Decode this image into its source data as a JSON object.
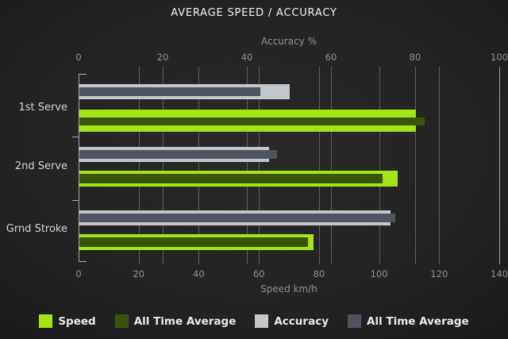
{
  "title": "AVERAGE SPEED / ACCURACY",
  "chart_data": {
    "type": "bar",
    "orientation": "horizontal",
    "title": "AVERAGE SPEED / ACCURACY",
    "categories": [
      "1st Serve",
      "2nd Serve",
      "Grnd Stroke"
    ],
    "series": [
      {
        "name": "Speed",
        "axis": "speed",
        "color": "#a4e314",
        "values": [
          112,
          106,
          78
        ]
      },
      {
        "name": "All Time Average",
        "axis": "speed",
        "color": "#3a530b",
        "values": [
          115,
          101,
          76
        ]
      },
      {
        "name": "Accuracy",
        "axis": "accuracy",
        "color": "#c1c7cb",
        "values": [
          50,
          45,
          74
        ]
      },
      {
        "name": "All Time Average",
        "axis": "accuracy",
        "color": "#4e545d",
        "values": [
          43,
          47,
          75
        ]
      }
    ],
    "top_axis": {
      "label": "Accuracy %",
      "range": [
        0,
        100
      ],
      "ticks": [
        0,
        20,
        40,
        60,
        80,
        100
      ]
    },
    "bottom_axis": {
      "label": "Speed km/h",
      "range": [
        0,
        140
      ],
      "ticks": [
        0,
        20,
        40,
        60,
        80,
        100,
        120,
        140
      ]
    },
    "grid": true,
    "legend_position": "bottom",
    "legend": [
      "Speed",
      "All Time Average",
      "Accuracy",
      "All Time Average"
    ]
  },
  "colors": {
    "background": "#232323",
    "grid": "#5c5c5c",
    "axis": "#a9a9a9",
    "title_text": "#f2f2f2",
    "tick_text": "#8f8f8f",
    "category_text": "#d4d4d4",
    "legend_text": "#e9e9e9"
  }
}
